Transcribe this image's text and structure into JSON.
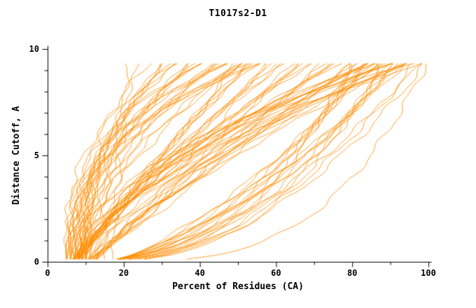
{
  "chart_data": {
    "type": "line",
    "title": "T1017s2-D1",
    "xlabel": "Percent of Residues (CA)",
    "ylabel": "Distance Cutoff, A",
    "xlim": [
      0,
      100
    ],
    "ylim": [
      0,
      10
    ],
    "x_ticks_major": [
      0,
      20,
      40,
      60,
      80,
      100
    ],
    "x_ticks_minor": [
      10,
      30,
      50,
      70,
      90
    ],
    "y_ticks_major": [
      0,
      5,
      10
    ],
    "y_ticks_minor": [
      1,
      2,
      3,
      4,
      6,
      7,
      8,
      9
    ],
    "grid": false,
    "legend": "none",
    "line_color": "#ff8c00",
    "axis_color": "#000000",
    "background": "#ffffff",
    "cutoff_max": 9.5,
    "curve_format": "[percent_at_cutoff_0, percent_at_cutoff_max, shape_exponent]",
    "curves": [
      [
        5,
        30,
        1.5
      ],
      [
        6,
        31,
        1.75
      ],
      [
        7,
        32,
        2.0
      ],
      [
        8,
        33,
        2.25
      ],
      [
        9,
        34,
        2.5
      ],
      [
        10,
        35,
        2.75
      ],
      [
        5,
        36,
        3.0
      ],
      [
        6,
        37,
        1.5
      ],
      [
        7,
        38,
        1.75
      ],
      [
        8,
        39,
        2.0
      ],
      [
        9,
        40,
        2.25
      ],
      [
        10,
        41,
        2.5
      ],
      [
        5,
        42,
        2.75
      ],
      [
        6,
        43,
        3.0
      ],
      [
        7,
        44,
        1.5
      ],
      [
        8,
        45,
        1.75
      ],
      [
        9,
        46,
        2.0
      ],
      [
        10,
        47,
        2.25
      ],
      [
        5,
        48,
        2.5
      ],
      [
        6,
        49,
        2.75
      ],
      [
        7,
        50,
        3.0
      ],
      [
        8,
        51,
        1.5
      ],
      [
        9,
        52,
        1.75
      ],
      [
        10,
        53,
        2.0
      ],
      [
        5,
        54,
        2.25
      ],
      [
        6,
        55,
        2.5
      ],
      [
        7,
        57,
        2.75
      ],
      [
        8,
        59,
        3.0
      ],
      [
        6,
        50,
        0.9
      ],
      [
        7,
        51,
        1.0
      ],
      [
        8,
        53,
        1.1
      ],
      [
        9,
        54,
        1.2
      ],
      [
        10,
        55,
        1.3
      ],
      [
        11,
        56,
        1.4
      ],
      [
        12,
        58,
        0.9
      ],
      [
        6,
        59,
        1.0
      ],
      [
        7,
        60,
        1.1
      ],
      [
        8,
        61,
        1.2
      ],
      [
        9,
        63,
        1.3
      ],
      [
        10,
        64,
        1.4
      ],
      [
        11,
        65,
        0.9
      ],
      [
        12,
        66,
        1.0
      ],
      [
        6,
        68,
        1.1
      ],
      [
        7,
        69,
        1.2
      ],
      [
        8,
        70,
        1.3
      ],
      [
        9,
        71,
        1.4
      ],
      [
        10,
        73,
        0.9
      ],
      [
        11,
        74,
        1.0
      ],
      [
        12,
        75,
        1.1
      ],
      [
        6,
        76,
        1.2
      ],
      [
        7,
        78,
        1.3
      ],
      [
        8,
        79,
        1.4
      ],
      [
        9,
        80,
        0.9
      ],
      [
        10,
        81,
        1.0
      ],
      [
        11,
        83,
        1.1
      ],
      [
        12,
        85,
        1.2
      ],
      [
        8,
        80,
        0.35
      ],
      [
        9,
        81,
        0.4
      ],
      [
        10,
        82,
        0.45
      ],
      [
        11,
        83,
        0.5
      ],
      [
        12,
        84,
        0.55
      ],
      [
        13,
        85,
        0.6
      ],
      [
        14,
        86,
        0.65
      ],
      [
        15,
        87,
        0.7
      ],
      [
        8,
        88,
        0.35
      ],
      [
        9,
        89,
        0.4
      ],
      [
        10,
        90,
        0.45
      ],
      [
        11,
        91,
        0.5
      ],
      [
        12,
        92,
        0.55
      ],
      [
        13,
        93,
        0.6
      ],
      [
        14,
        94,
        0.65
      ],
      [
        15,
        95,
        0.7
      ],
      [
        9,
        97,
        0.45
      ],
      [
        11,
        99,
        0.55
      ],
      [
        7,
        85,
        1.2
      ],
      [
        8,
        86,
        1.4
      ],
      [
        9,
        87,
        1.6
      ],
      [
        10,
        88,
        1.8
      ],
      [
        11,
        89,
        2.0
      ],
      [
        12,
        90,
        1.2
      ],
      [
        13,
        91,
        1.4
      ],
      [
        7,
        92,
        1.6
      ],
      [
        8,
        93,
        1.8
      ],
      [
        9,
        94,
        2.0
      ],
      [
        10,
        95,
        1.2
      ],
      [
        11,
        96,
        1.4
      ],
      [
        12,
        97,
        1.6
      ],
      [
        13,
        98,
        1.8
      ],
      [
        7,
        99,
        2.0
      ],
      [
        8,
        100,
        1.6
      ],
      [
        17,
        21,
        1.1
      ],
      [
        15,
        25,
        2.8
      ],
      [
        11,
        28,
        3.5
      ],
      [
        13,
        100,
        0.3
      ],
      [
        16,
        100,
        0.5
      ]
    ]
  }
}
